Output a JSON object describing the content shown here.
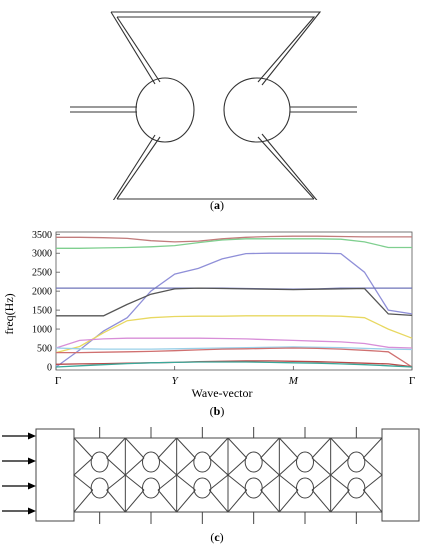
{
  "figure": {
    "panel_a": {
      "caption_letter": "a"
    },
    "panel_b": {
      "caption_letter": "b"
    },
    "panel_c": {
      "caption_letter": "c"
    }
  },
  "chart_data": {
    "type": "line",
    "title": "",
    "xlabel": "Wave-vector",
    "ylabel": "freq(Hz)",
    "ylim": [
      -80,
      3560
    ],
    "yticks": [
      0,
      500,
      1000,
      1500,
      2000,
      2500,
      3000,
      3500
    ],
    "x_tick_labels": [
      "Γ",
      "Y",
      "M",
      "Γ"
    ],
    "x_tick_positions": [
      0,
      1,
      2,
      3
    ],
    "grid": false,
    "x": [
      0,
      0.2,
      0.4,
      0.6,
      0.8,
      1.0,
      1.2,
      1.4,
      1.6,
      1.8,
      2.0,
      2.2,
      2.4,
      2.6,
      2.8,
      3.0
    ],
    "series": [
      {
        "color": "#c27c7c",
        "values": [
          3420,
          3420,
          3410,
          3390,
          3330,
          3300,
          3320,
          3380,
          3420,
          3440,
          3450,
          3450,
          3440,
          3430,
          3430,
          3430
        ]
      },
      {
        "color": "#7fcf8f",
        "values": [
          3130,
          3130,
          3140,
          3150,
          3170,
          3200,
          3280,
          3350,
          3380,
          3380,
          3380,
          3380,
          3370,
          3300,
          3150,
          3150
        ]
      },
      {
        "color": "#8f8fd8",
        "values": [
          0,
          450,
          950,
          1300,
          2000,
          2450,
          2600,
          2850,
          2990,
          3000,
          3000,
          3000,
          2990,
          2500,
          1500,
          1400
        ]
      },
      {
        "color": "#6f74b8",
        "values": [
          2080,
          2080,
          2080,
          2080,
          2080,
          2080,
          2080,
          2080,
          2070,
          2060,
          2050,
          2060,
          2080,
          2080,
          2080,
          2080
        ]
      },
      {
        "color": "#555555",
        "values": [
          1350,
          1350,
          1350,
          1650,
          1920,
          2060,
          2080,
          2070,
          2060,
          2050,
          2040,
          2050,
          2060,
          2070,
          1400,
          1360
        ]
      },
      {
        "color": "#e8d860",
        "values": [
          380,
          540,
          900,
          1220,
          1300,
          1330,
          1340,
          1340,
          1350,
          1350,
          1350,
          1350,
          1340,
          1300,
          1000,
          760
        ]
      },
      {
        "color": "#d88ed8",
        "values": [
          500,
          700,
          740,
          760,
          760,
          760,
          760,
          750,
          740,
          720,
          700,
          680,
          660,
          620,
          520,
          500
        ]
      },
      {
        "color": "#9ad0e8",
        "values": [
          500,
          480,
          470,
          470,
          470,
          480,
          490,
          500,
          510,
          520,
          530,
          520,
          510,
          490,
          470,
          460
        ]
      },
      {
        "color": "#d07070",
        "values": [
          380,
          380,
          390,
          400,
          410,
          430,
          450,
          470,
          480,
          490,
          500,
          490,
          470,
          440,
          400,
          0
        ]
      },
      {
        "color": "#b84a4a",
        "values": [
          70,
          80,
          90,
          100,
          110,
          120,
          140,
          150,
          160,
          160,
          150,
          140,
          120,
          100,
          80,
          10
        ]
      },
      {
        "color": "#3aa89a",
        "values": [
          0,
          30,
          60,
          90,
          110,
          120,
          130,
          130,
          130,
          120,
          110,
          100,
          80,
          60,
          30,
          0
        ]
      }
    ]
  }
}
